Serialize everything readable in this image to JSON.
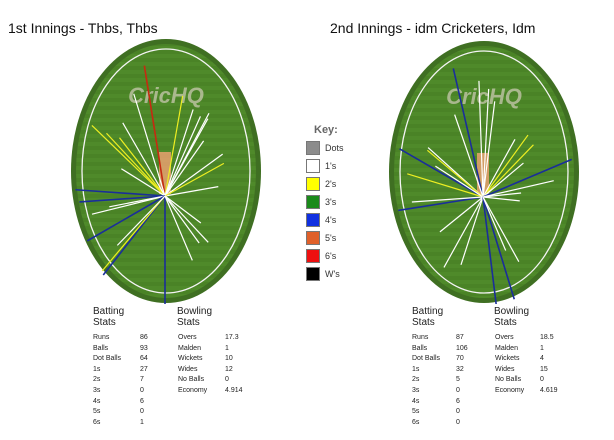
{
  "innings": [
    {
      "title": "1st Innings - Thbs, Thbs",
      "logo": "CricHQ",
      "batting_heading": "Batting Stats",
      "bowling_heading": "Bowling Stats",
      "batting": [
        [
          "Runs",
          "86"
        ],
        [
          "Balls",
          "93"
        ],
        [
          "Dot Balls",
          "64"
        ],
        [
          "1s",
          "27"
        ],
        [
          "2s",
          "7"
        ],
        [
          "3s",
          "0"
        ],
        [
          "4s",
          "6"
        ],
        [
          "5s",
          "0"
        ],
        [
          "6s",
          "1"
        ]
      ],
      "bowling": [
        [
          "Overs",
          "17.3"
        ],
        [
          "Malden",
          "1"
        ],
        [
          "Wickets",
          "10"
        ],
        [
          "Wides",
          "12"
        ],
        [
          "No Balls",
          "0"
        ],
        [
          "Economy",
          "4.914"
        ]
      ],
      "shots": [
        {
          "runs": 6,
          "angle": -9,
          "dist": 1.0
        },
        {
          "runs": 2,
          "angle": 10,
          "dist": 0.77
        },
        {
          "runs": 1,
          "angle": -17,
          "dist": 0.81
        },
        {
          "runs": 2,
          "angle": -46,
          "dist": 0.77
        },
        {
          "runs": 2,
          "angle": -43,
          "dist": 0.65
        },
        {
          "runs": 2,
          "angle": -38,
          "dist": 0.56
        },
        {
          "runs": 1,
          "angle": -30,
          "dist": 0.64
        },
        {
          "runs": 1,
          "angle": -58,
          "dist": 0.39
        },
        {
          "runs": 1,
          "angle": 18,
          "dist": 0.69
        },
        {
          "runs": 1,
          "angle": 24,
          "dist": 0.66
        },
        {
          "runs": 1,
          "angle": 29,
          "dist": 0.67
        },
        {
          "runs": 1,
          "angle": 28,
          "dist": 0.71
        },
        {
          "runs": 1,
          "angle": 35,
          "dist": 0.51
        },
        {
          "runs": 1,
          "angle": 54,
          "dist": 0.54
        },
        {
          "runs": 1,
          "angle": 80,
          "dist": 0.41
        },
        {
          "runs": 2,
          "angle": 61,
          "dist": 0.51
        },
        {
          "runs": 4,
          "angle": -86,
          "dist": 0.68
        },
        {
          "runs": 4,
          "angle": -94,
          "dist": 0.65
        },
        {
          "runs": 1,
          "angle": -104,
          "dist": 0.57
        },
        {
          "runs": 1,
          "angle": -101,
          "dist": 0.43
        },
        {
          "runs": 4,
          "angle": -120,
          "dist": 0.68
        },
        {
          "runs": 4,
          "angle": -142,
          "dist": 0.76
        },
        {
          "runs": 2,
          "angle": -140,
          "dist": 0.74
        },
        {
          "runs": 4,
          "angle": 180,
          "dist": 0.82
        },
        {
          "runs": 1,
          "angle": 157,
          "dist": 0.53
        },
        {
          "runs": 1,
          "angle": 137,
          "dist": 0.48
        },
        {
          "runs": 1,
          "angle": 127,
          "dist": 0.34
        },
        {
          "runs": 1,
          "angle": 144,
          "dist": 0.44
        },
        {
          "runs": 1,
          "angle": -136,
          "dist": 0.52
        }
      ]
    },
    {
      "title": "2nd Innings - idm Cricketers, Idm",
      "logo": "CricHQ",
      "batting_heading": "Batting Stats",
      "bowling_heading": "Bowling Stats",
      "batting": [
        [
          "Runs",
          "87"
        ],
        [
          "Balls",
          "106"
        ],
        [
          "Dot Balls",
          "70"
        ],
        [
          "1s",
          "32"
        ],
        [
          "2s",
          "5"
        ],
        [
          "3s",
          "0"
        ],
        [
          "4s",
          "6"
        ],
        [
          "5s",
          "0"
        ],
        [
          "6s",
          "0"
        ]
      ],
      "bowling": [
        [
          "Overs",
          "18.5"
        ],
        [
          "Malden",
          "1"
        ],
        [
          "Wickets",
          "4"
        ],
        [
          "Wides",
          "15"
        ],
        [
          "No Balls",
          "0"
        ],
        [
          "Economy",
          "4.619"
        ]
      ],
      "shots": [
        {
          "runs": 4,
          "angle": -13,
          "dist": 1.0
        },
        {
          "runs": 1,
          "angle": -2,
          "dist": 0.88
        },
        {
          "runs": 1,
          "angle": 3,
          "dist": 0.82
        },
        {
          "runs": 1,
          "angle": 7,
          "dist": 0.73
        },
        {
          "runs": 1,
          "angle": -19,
          "dist": 0.66
        },
        {
          "runs": 4,
          "angle": -60,
          "dist": 0.73
        },
        {
          "runs": 1,
          "angle": -48,
          "dist": 0.56
        },
        {
          "runs": 2,
          "angle": -50,
          "dist": 0.55
        },
        {
          "runs": 2,
          "angle": -73,
          "dist": 0.6
        },
        {
          "runs": 1,
          "angle": -57,
          "dist": 0.43
        },
        {
          "runs": 4,
          "angle": -99,
          "dist": 0.65
        },
        {
          "runs": 1,
          "angle": -94,
          "dist": 0.54
        },
        {
          "runs": 2,
          "angle": 36,
          "dist": 0.58
        },
        {
          "runs": 1,
          "angle": 29,
          "dist": 0.5
        },
        {
          "runs": 2,
          "angle": 44,
          "dist": 0.55
        },
        {
          "runs": 1,
          "angle": 50,
          "dist": 0.4
        },
        {
          "runs": 4,
          "angle": 67,
          "dist": 0.73
        },
        {
          "runs": 1,
          "angle": 77,
          "dist": 0.55
        },
        {
          "runs": 1,
          "angle": 84,
          "dist": 0.29
        },
        {
          "runs": 1,
          "angle": 96,
          "dist": 0.28
        },
        {
          "runs": 1,
          "angle": -129,
          "dist": 0.42
        },
        {
          "runs": 1,
          "angle": -151,
          "dist": 0.61
        },
        {
          "runs": 1,
          "angle": -162,
          "dist": 0.54
        },
        {
          "runs": 4,
          "angle": 173,
          "dist": 0.82
        },
        {
          "runs": 4,
          "angle": 163,
          "dist": 0.81
        },
        {
          "runs": 1,
          "angle": 151,
          "dist": 0.56
        },
        {
          "runs": 1,
          "angle": 157,
          "dist": 0.44
        }
      ]
    }
  ],
  "key": {
    "title": "Key:",
    "items": [
      {
        "label": "Dots",
        "color": "#8c8c8c"
      },
      {
        "label": "1's",
        "color": "#ffffff"
      },
      {
        "label": "2's",
        "color": "#ffff00"
      },
      {
        "label": "3's",
        "color": "#1a8a1a"
      },
      {
        "label": "4's",
        "color": "#1030e0"
      },
      {
        "label": "5's",
        "color": "#e0602a"
      },
      {
        "label": "6's",
        "color": "#ee1010"
      },
      {
        "label": "W's",
        "color": "#000000"
      }
    ]
  },
  "run_colors": {
    "0": "#8c8c8c",
    "1": "#ffffff",
    "2": "#eeee22",
    "3": "#1a8a1a",
    "4": "#1a2e9a",
    "5": "#e0602a",
    "6": "#c62a10"
  }
}
